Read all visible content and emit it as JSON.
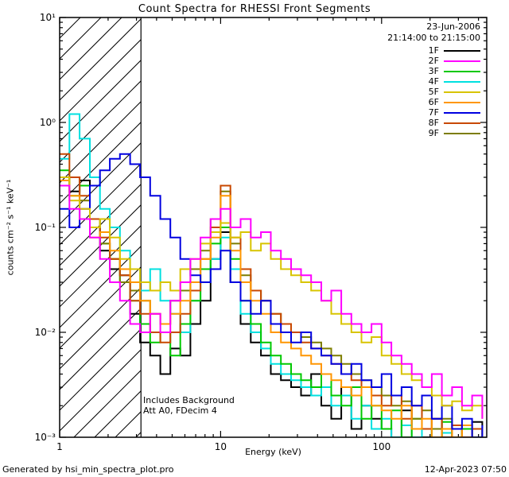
{
  "title": "Count Spectra for RHESSI Front Segments",
  "header": {
    "date": "23-Jun-2006",
    "time_range": "21:14:00 to 21:15:00"
  },
  "annotations": {
    "line1": "Includes Background",
    "line2": "Att A0, FDecim 4"
  },
  "footer": {
    "left": "Generated by hsi_min_spectra_plot.pro",
    "right": "12-Apr-2023 07:50"
  },
  "axes": {
    "xlabel": "Energy (keV)",
    "ylabel": "counts cm⁻² s⁻¹ keV⁻¹",
    "xscale": "log",
    "yscale": "log",
    "xlim": [
      1,
      450
    ],
    "ylim": [
      0.001,
      10
    ],
    "x_ticks": [
      {
        "value": 1,
        "label": "1"
      },
      {
        "value": 10,
        "label": "10"
      },
      {
        "value": 100,
        "label": "100"
      }
    ],
    "y_ticks": [
      {
        "value": 0.001,
        "label": "10⁻³"
      },
      {
        "value": 0.01,
        "label": "10⁻²"
      },
      {
        "value": 0.1,
        "label": "10⁻¹"
      },
      {
        "value": 1,
        "label": "10⁰"
      },
      {
        "value": 10,
        "label": "10¹"
      }
    ]
  },
  "hatch_region": {
    "from": 1,
    "to": 3.2
  },
  "chart_data": {
    "type": "line",
    "mode": "steps",
    "title": "Count Spectra for RHESSI Front Segments",
    "xlabel": "Energy (keV)",
    "ylabel": "counts cm-2 s-1 keV-1",
    "x": [
      1.0,
      1.15,
      1.33,
      1.54,
      1.78,
      2.05,
      2.37,
      2.74,
      3.16,
      3.65,
      4.22,
      4.87,
      5.62,
      6.49,
      7.5,
      8.66,
      10.0,
      11.5,
      13.3,
      15.4,
      17.8,
      20.5,
      23.7,
      27.4,
      31.6,
      36.5,
      42.2,
      48.7,
      56.2,
      64.9,
      75.0,
      86.6,
      100,
      115,
      133,
      154,
      178,
      205,
      237,
      274,
      316,
      365,
      422
    ],
    "series": [
      {
        "name": "1F",
        "color": "#000000",
        "values": [
          0.3,
          0.22,
          0.28,
          0.1,
          0.06,
          0.04,
          0.035,
          0.015,
          0.008,
          0.006,
          0.004,
          0.007,
          0.006,
          0.012,
          0.02,
          0.05,
          0.09,
          0.03,
          0.012,
          0.008,
          0.006,
          0.004,
          0.0035,
          0.003,
          0.0025,
          0.004,
          0.002,
          0.0015,
          0.003,
          0.0012,
          0.002,
          0.0015,
          0.0012,
          0.001,
          0.0018,
          0.0012,
          0.001,
          0.0015,
          0.001,
          0.0012,
          0.001,
          0.0014,
          0.001
        ]
      },
      {
        "name": "2F",
        "color": "#ff00ff",
        "values": [
          0.25,
          0.15,
          0.12,
          0.08,
          0.05,
          0.03,
          0.02,
          0.012,
          0.01,
          0.015,
          0.01,
          0.02,
          0.03,
          0.05,
          0.08,
          0.12,
          0.15,
          0.1,
          0.12,
          0.08,
          0.09,
          0.06,
          0.05,
          0.04,
          0.035,
          0.03,
          0.02,
          0.025,
          0.015,
          0.012,
          0.01,
          0.012,
          0.008,
          0.006,
          0.005,
          0.004,
          0.003,
          0.004,
          0.0025,
          0.003,
          0.002,
          0.0025,
          0.0015
        ]
      },
      {
        "name": "3F",
        "color": "#00c800",
        "values": [
          0.35,
          0.2,
          0.25,
          0.12,
          0.07,
          0.05,
          0.03,
          0.02,
          0.012,
          0.008,
          0.01,
          0.006,
          0.012,
          0.02,
          0.04,
          0.07,
          0.1,
          0.05,
          0.02,
          0.012,
          0.008,
          0.006,
          0.005,
          0.004,
          0.0035,
          0.003,
          0.004,
          0.0025,
          0.002,
          0.003,
          0.0015,
          0.002,
          0.0012,
          0.0018,
          0.001,
          0.0015,
          0.0012,
          0.001,
          0.0014,
          0.001,
          0.0012,
          0.001,
          0.0011
        ]
      },
      {
        "name": "4F",
        "color": "#00e0e0",
        "values": [
          0.45,
          1.2,
          0.7,
          0.3,
          0.15,
          0.1,
          0.06,
          0.04,
          0.025,
          0.04,
          0.02,
          0.015,
          0.01,
          0.02,
          0.03,
          0.05,
          0.08,
          0.04,
          0.015,
          0.01,
          0.007,
          0.005,
          0.004,
          0.0035,
          0.003,
          0.0025,
          0.003,
          0.002,
          0.0025,
          0.0015,
          0.002,
          0.0012,
          0.0015,
          0.001,
          0.0013,
          0.001,
          0.0012,
          0.001,
          0.0011,
          0.001,
          0.0012,
          0.001,
          0.0011
        ]
      },
      {
        "name": "5F",
        "color": "#d8c400",
        "values": [
          0.3,
          0.18,
          0.15,
          0.1,
          0.12,
          0.08,
          0.05,
          0.04,
          0.03,
          0.025,
          0.03,
          0.025,
          0.04,
          0.05,
          0.07,
          0.09,
          0.11,
          0.08,
          0.09,
          0.06,
          0.07,
          0.05,
          0.04,
          0.035,
          0.03,
          0.025,
          0.02,
          0.015,
          0.012,
          0.01,
          0.008,
          0.009,
          0.006,
          0.005,
          0.004,
          0.0035,
          0.003,
          0.0025,
          0.002,
          0.0022,
          0.0018,
          0.002,
          0.0015
        ]
      },
      {
        "name": "6F",
        "color": "#ff9600",
        "values": [
          0.28,
          0.2,
          0.12,
          0.08,
          0.09,
          0.06,
          0.04,
          0.03,
          0.02,
          0.015,
          0.012,
          0.015,
          0.02,
          0.03,
          0.05,
          0.08,
          0.2,
          0.06,
          0.03,
          0.02,
          0.015,
          0.01,
          0.008,
          0.007,
          0.006,
          0.005,
          0.004,
          0.0035,
          0.003,
          0.0025,
          0.003,
          0.002,
          0.0018,
          0.0015,
          0.002,
          0.0012,
          0.0015,
          0.001,
          0.0012,
          0.001,
          0.0013,
          0.001,
          0.0012
        ]
      },
      {
        "name": "7F",
        "color": "#0000e0",
        "values": [
          0.15,
          0.1,
          0.15,
          0.25,
          0.35,
          0.45,
          0.5,
          0.4,
          0.3,
          0.2,
          0.12,
          0.08,
          0.05,
          0.035,
          0.03,
          0.04,
          0.06,
          0.03,
          0.02,
          0.015,
          0.02,
          0.012,
          0.01,
          0.008,
          0.01,
          0.007,
          0.006,
          0.005,
          0.004,
          0.005,
          0.0035,
          0.003,
          0.004,
          0.0025,
          0.003,
          0.002,
          0.0025,
          0.0015,
          0.002,
          0.0012,
          0.0015,
          0.001,
          0.0013
        ]
      },
      {
        "name": "8F",
        "color": "#c84800",
        "values": [
          0.5,
          0.3,
          0.2,
          0.12,
          0.08,
          0.05,
          0.035,
          0.02,
          0.015,
          0.01,
          0.008,
          0.01,
          0.015,
          0.025,
          0.05,
          0.1,
          0.25,
          0.08,
          0.04,
          0.025,
          0.02,
          0.015,
          0.012,
          0.01,
          0.008,
          0.007,
          0.006,
          0.005,
          0.004,
          0.0035,
          0.003,
          0.0025,
          0.002,
          0.0025,
          0.0015,
          0.002,
          0.0012,
          0.0015,
          0.001,
          0.0013,
          0.001,
          0.0012,
          0.001
        ]
      },
      {
        "name": "9F",
        "color": "#7d7d00",
        "values": [
          0.25,
          0.3,
          0.18,
          0.1,
          0.07,
          0.05,
          0.03,
          0.025,
          0.02,
          0.015,
          0.012,
          0.02,
          0.025,
          0.04,
          0.06,
          0.12,
          0.22,
          0.07,
          0.035,
          0.025,
          0.02,
          0.015,
          0.012,
          0.01,
          0.009,
          0.008,
          0.007,
          0.006,
          0.005,
          0.004,
          0.0035,
          0.003,
          0.0025,
          0.002,
          0.0022,
          0.0015,
          0.0018,
          0.0012,
          0.0015,
          0.001,
          0.0013,
          0.001,
          0.0012
        ]
      }
    ]
  }
}
